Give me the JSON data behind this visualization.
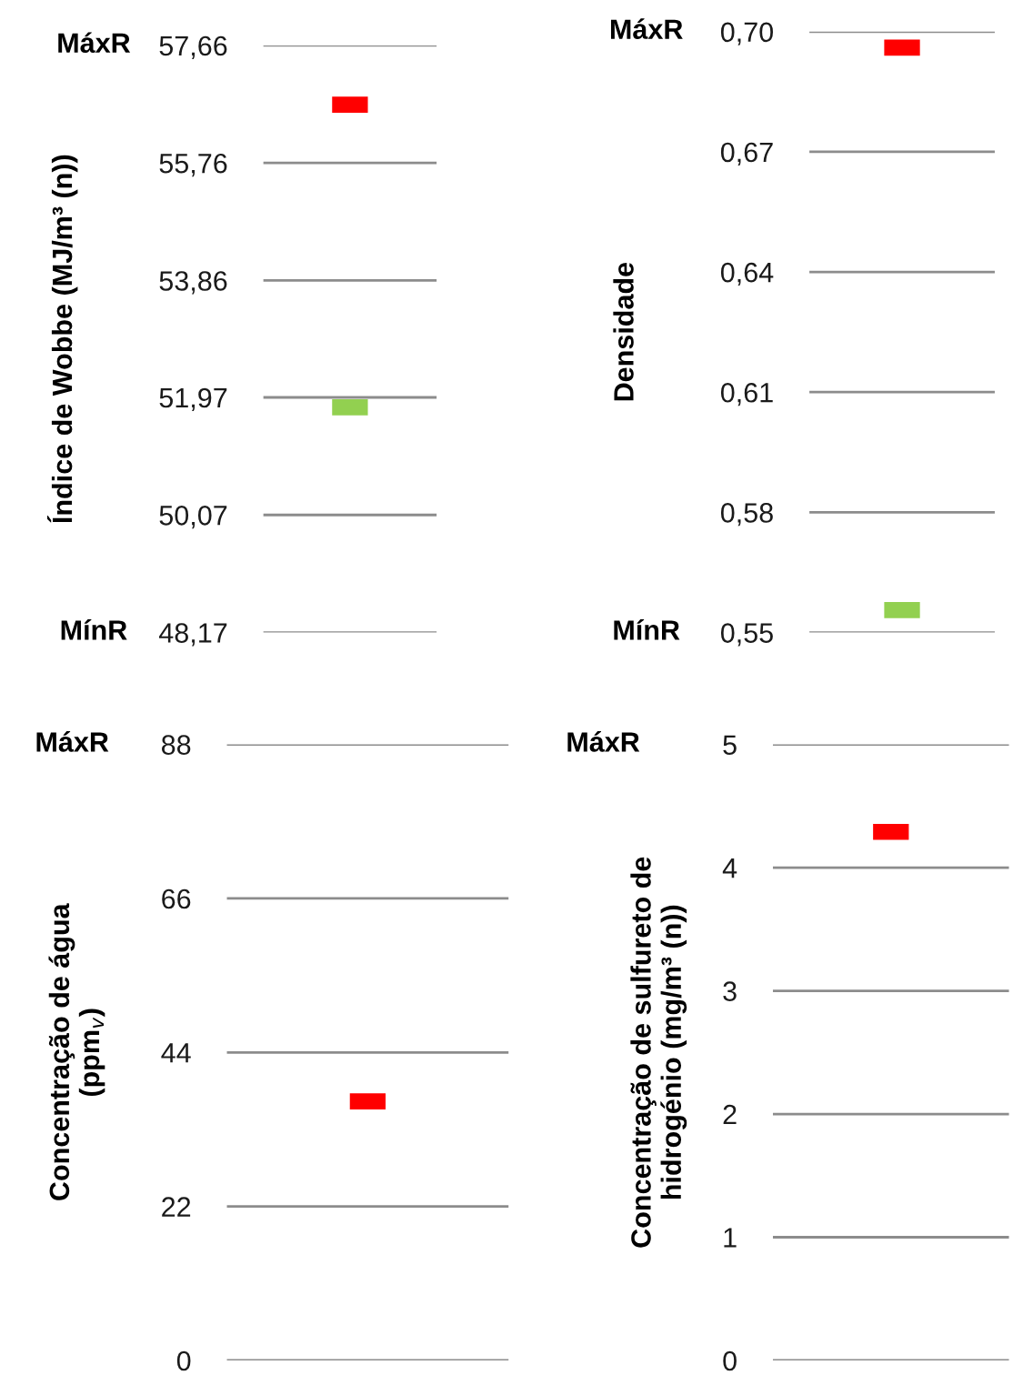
{
  "chart_data": [
    {
      "type": "scatter",
      "ylabel": "Índice de Wobbe (MJ/m³ (n))",
      "categories": [
        null
      ],
      "series": [
        {
          "color": "#ff0000",
          "values": [
            56.7
          ]
        },
        {
          "color": "#92d050",
          "values": [
            51.81
          ]
        }
      ],
      "ylim": [
        48.17,
        57.66
      ],
      "yticks": [
        {
          "value": 48.17,
          "label": "48,17"
        },
        {
          "value": 50.07,
          "label": "50,07"
        },
        {
          "value": 51.97,
          "label": "51,97"
        },
        {
          "value": 53.86,
          "label": "53,86"
        },
        {
          "value": 55.76,
          "label": "55,76"
        },
        {
          "value": 57.66,
          "label": "57,66"
        }
      ],
      "grid": "y",
      "tick_labels": "y",
      "annotations": [
        "MáxR",
        "MínR"
      ]
    },
    {
      "type": "scatter",
      "ylabel": "Densidade",
      "categories": [
        null
      ],
      "series": [
        {
          "color": "#ff0000",
          "values": [
            0.696
          ]
        },
        {
          "color": "#92d050",
          "values": [
            0.5556
          ]
        }
      ],
      "ylim": [
        0.55,
        0.7
      ],
      "yticks": [
        {
          "value": 0.55,
          "label": "0,55"
        },
        {
          "value": 0.58,
          "label": "0,58"
        },
        {
          "value": 0.61,
          "label": "0,61"
        },
        {
          "value": 0.64,
          "label": "0,64"
        },
        {
          "value": 0.67,
          "label": "0,67"
        },
        {
          "value": 0.7,
          "label": "0,70"
        }
      ],
      "grid": "y",
      "tick_labels": "y",
      "annotations": [
        "MáxR",
        "MínR"
      ]
    },
    {
      "type": "scatter",
      "ylabel": "Concentração de água\n(ppm$_{v}$)",
      "categories": [
        null
      ],
      "series": [
        {
          "color": "#ff0000",
          "values": [
            37.0
          ]
        }
      ],
      "ylim": [
        0,
        88
      ],
      "yticks": [
        0,
        22,
        44,
        66,
        88
      ],
      "grid": "y",
      "tick_labels": "y",
      "annotations": [
        "MáxR"
      ]
    },
    {
      "type": "scatter",
      "ylabel": "Concentração de sulfureto de\nhidrogénio (mg/m³ (n))",
      "categories": [
        null
      ],
      "series": [
        {
          "color": "#ff0000",
          "values": [
            4.29
          ]
        }
      ],
      "ylim": [
        0,
        5
      ],
      "yticks": [
        0,
        1,
        2,
        3,
        4,
        5
      ],
      "grid": "y",
      "tick_labels": "y",
      "annotations": [
        "MáxR"
      ]
    }
  ]
}
